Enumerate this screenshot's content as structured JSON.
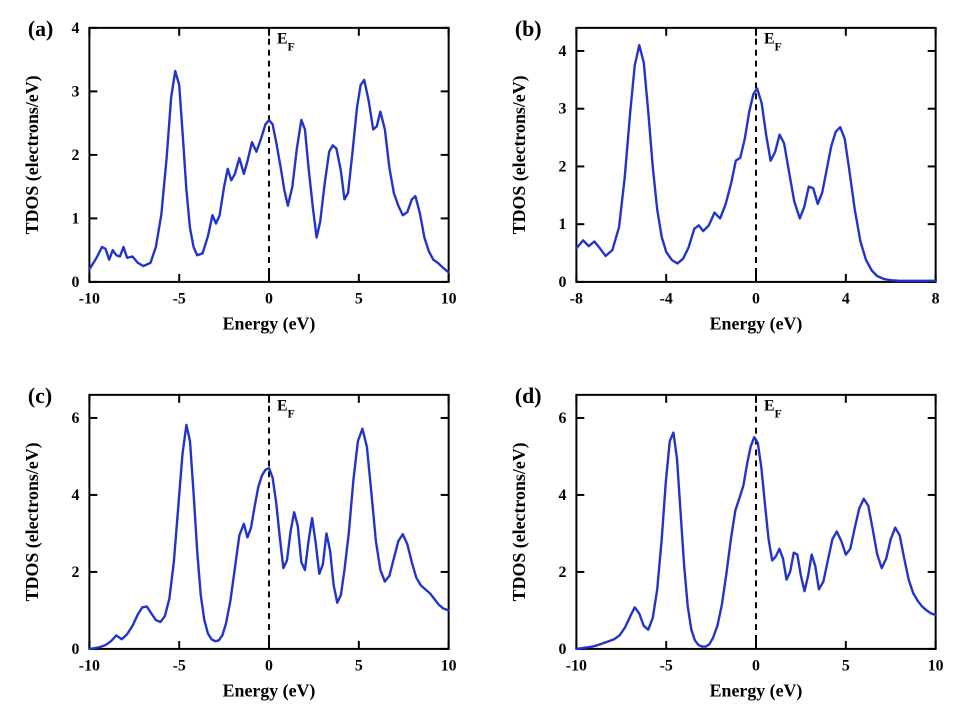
{
  "figure": {
    "background_color": "#ffffff",
    "line_color": "#2233cc",
    "line_width": 2.4,
    "axis_color": "#000000",
    "axis_width": 2,
    "tick_len_major": 8,
    "tick_len_minor": 0,
    "tick_width": 2,
    "fermi_line": {
      "color": "#000000",
      "width": 2,
      "dash": "6,5"
    },
    "font_family": "Times New Roman, Times, serif",
    "panel_label_fontsize": 22,
    "panel_label_fontweight": "bold",
    "axis_label_fontsize": 18,
    "axis_label_fontweight": "bold",
    "tick_label_fontsize": 16,
    "tick_label_fontweight": "bold",
    "ef_label": "E",
    "ef_label_sub": "F",
    "ef_label_fontsize": 16,
    "ef_label_fontweight": "bold",
    "xlabel": "Energy (eV)",
    "ylabel": "TDOS (electrons/eV)"
  },
  "panels": {
    "a": {
      "label": "(a)",
      "xlim": [
        -10,
        10
      ],
      "ylim": [
        0,
        4
      ],
      "xticks": [
        -10,
        -5,
        0,
        5,
        10
      ],
      "yticks": [
        0,
        1,
        2,
        3,
        4
      ],
      "data": [
        [
          -10.0,
          0.2
        ],
        [
          -9.6,
          0.38
        ],
        [
          -9.3,
          0.55
        ],
        [
          -9.1,
          0.52
        ],
        [
          -8.9,
          0.35
        ],
        [
          -8.7,
          0.5
        ],
        [
          -8.5,
          0.42
        ],
        [
          -8.3,
          0.4
        ],
        [
          -8.1,
          0.55
        ],
        [
          -7.9,
          0.38
        ],
        [
          -7.6,
          0.4
        ],
        [
          -7.3,
          0.3
        ],
        [
          -7.0,
          0.25
        ],
        [
          -6.6,
          0.3
        ],
        [
          -6.3,
          0.55
        ],
        [
          -6.0,
          1.05
        ],
        [
          -5.7,
          1.95
        ],
        [
          -5.45,
          2.9
        ],
        [
          -5.22,
          3.32
        ],
        [
          -5.0,
          3.1
        ],
        [
          -4.8,
          2.3
        ],
        [
          -4.6,
          1.45
        ],
        [
          -4.4,
          0.85
        ],
        [
          -4.2,
          0.55
        ],
        [
          -4.0,
          0.42
        ],
        [
          -3.7,
          0.45
        ],
        [
          -3.4,
          0.72
        ],
        [
          -3.15,
          1.05
        ],
        [
          -2.95,
          0.92
        ],
        [
          -2.75,
          1.05
        ],
        [
          -2.5,
          1.5
        ],
        [
          -2.3,
          1.78
        ],
        [
          -2.1,
          1.6
        ],
        [
          -1.9,
          1.7
        ],
        [
          -1.65,
          1.95
        ],
        [
          -1.4,
          1.7
        ],
        [
          -1.2,
          1.9
        ],
        [
          -0.95,
          2.2
        ],
        [
          -0.7,
          2.05
        ],
        [
          -0.45,
          2.25
        ],
        [
          -0.2,
          2.48
        ],
        [
          0.0,
          2.55
        ],
        [
          0.2,
          2.48
        ],
        [
          0.4,
          2.2
        ],
        [
          0.65,
          1.8
        ],
        [
          0.85,
          1.45
        ],
        [
          1.05,
          1.2
        ],
        [
          1.3,
          1.5
        ],
        [
          1.55,
          2.1
        ],
        [
          1.8,
          2.55
        ],
        [
          2.0,
          2.4
        ],
        [
          2.2,
          1.8
        ],
        [
          2.45,
          1.15
        ],
        [
          2.65,
          0.7
        ],
        [
          2.85,
          0.95
        ],
        [
          3.1,
          1.55
        ],
        [
          3.35,
          2.05
        ],
        [
          3.55,
          2.15
        ],
        [
          3.75,
          2.1
        ],
        [
          4.0,
          1.75
        ],
        [
          4.2,
          1.3
        ],
        [
          4.4,
          1.4
        ],
        [
          4.65,
          2.05
        ],
        [
          4.9,
          2.75
        ],
        [
          5.1,
          3.1
        ],
        [
          5.3,
          3.18
        ],
        [
          5.55,
          2.85
        ],
        [
          5.8,
          2.4
        ],
        [
          6.0,
          2.45
        ],
        [
          6.2,
          2.68
        ],
        [
          6.45,
          2.4
        ],
        [
          6.7,
          1.8
        ],
        [
          6.95,
          1.4
        ],
        [
          7.2,
          1.2
        ],
        [
          7.45,
          1.05
        ],
        [
          7.7,
          1.1
        ],
        [
          7.95,
          1.3
        ],
        [
          8.15,
          1.35
        ],
        [
          8.4,
          1.08
        ],
        [
          8.65,
          0.7
        ],
        [
          8.9,
          0.48
        ],
        [
          9.15,
          0.35
        ],
        [
          9.4,
          0.3
        ],
        [
          9.7,
          0.22
        ],
        [
          10.0,
          0.15
        ]
      ]
    },
    "b": {
      "label": "(b)",
      "xlim": [
        -8,
        8
      ],
      "ylim": [
        0,
        4.4
      ],
      "xticks": [
        -8,
        -4,
        0,
        4,
        8
      ],
      "yticks": [
        0,
        1,
        2,
        3,
        4
      ],
      "data": [
        [
          -8.0,
          0.58
        ],
        [
          -7.7,
          0.72
        ],
        [
          -7.45,
          0.62
        ],
        [
          -7.2,
          0.7
        ],
        [
          -6.95,
          0.58
        ],
        [
          -6.7,
          0.45
        ],
        [
          -6.4,
          0.55
        ],
        [
          -6.1,
          0.95
        ],
        [
          -5.85,
          1.8
        ],
        [
          -5.6,
          2.95
        ],
        [
          -5.4,
          3.75
        ],
        [
          -5.2,
          4.1
        ],
        [
          -5.0,
          3.8
        ],
        [
          -4.8,
          2.95
        ],
        [
          -4.6,
          2.0
        ],
        [
          -4.4,
          1.25
        ],
        [
          -4.2,
          0.78
        ],
        [
          -4.0,
          0.52
        ],
        [
          -3.75,
          0.38
        ],
        [
          -3.5,
          0.32
        ],
        [
          -3.25,
          0.4
        ],
        [
          -3.0,
          0.6
        ],
        [
          -2.75,
          0.92
        ],
        [
          -2.55,
          0.98
        ],
        [
          -2.35,
          0.88
        ],
        [
          -2.1,
          0.98
        ],
        [
          -1.85,
          1.2
        ],
        [
          -1.6,
          1.1
        ],
        [
          -1.35,
          1.35
        ],
        [
          -1.1,
          1.72
        ],
        [
          -0.9,
          2.1
        ],
        [
          -0.7,
          2.15
        ],
        [
          -0.5,
          2.48
        ],
        [
          -0.3,
          2.95
        ],
        [
          -0.12,
          3.25
        ],
        [
          0.05,
          3.35
        ],
        [
          0.25,
          3.1
        ],
        [
          0.45,
          2.55
        ],
        [
          0.65,
          2.1
        ],
        [
          0.85,
          2.25
        ],
        [
          1.05,
          2.55
        ],
        [
          1.25,
          2.4
        ],
        [
          1.45,
          1.95
        ],
        [
          1.7,
          1.4
        ],
        [
          1.95,
          1.1
        ],
        [
          2.15,
          1.3
        ],
        [
          2.35,
          1.65
        ],
        [
          2.55,
          1.62
        ],
        [
          2.75,
          1.35
        ],
        [
          2.95,
          1.55
        ],
        [
          3.15,
          1.95
        ],
        [
          3.35,
          2.35
        ],
        [
          3.55,
          2.6
        ],
        [
          3.75,
          2.68
        ],
        [
          3.95,
          2.48
        ],
        [
          4.15,
          1.95
        ],
        [
          4.4,
          1.25
        ],
        [
          4.65,
          0.7
        ],
        [
          4.9,
          0.38
        ],
        [
          5.15,
          0.2
        ],
        [
          5.4,
          0.1
        ],
        [
          5.7,
          0.05
        ],
        [
          6.0,
          0.03
        ],
        [
          6.4,
          0.02
        ],
        [
          6.8,
          0.02
        ],
        [
          7.2,
          0.02
        ],
        [
          7.6,
          0.02
        ],
        [
          8.0,
          0.02
        ]
      ]
    },
    "c": {
      "label": "(c)",
      "xlim": [
        -10,
        10
      ],
      "ylim": [
        0,
        6.6
      ],
      "xticks": [
        -10,
        -5,
        0,
        5,
        10
      ],
      "yticks": [
        0,
        2,
        4,
        6
      ],
      "data": [
        [
          -10.0,
          0.0
        ],
        [
          -9.7,
          0.02
        ],
        [
          -9.4,
          0.05
        ],
        [
          -9.1,
          0.1
        ],
        [
          -8.8,
          0.2
        ],
        [
          -8.5,
          0.35
        ],
        [
          -8.2,
          0.25
        ],
        [
          -7.9,
          0.38
        ],
        [
          -7.6,
          0.6
        ],
        [
          -7.3,
          0.9
        ],
        [
          -7.05,
          1.08
        ],
        [
          -6.8,
          1.1
        ],
        [
          -6.55,
          0.92
        ],
        [
          -6.3,
          0.75
        ],
        [
          -6.05,
          0.7
        ],
        [
          -5.8,
          0.85
        ],
        [
          -5.55,
          1.3
        ],
        [
          -5.3,
          2.25
        ],
        [
          -5.05,
          3.7
        ],
        [
          -4.82,
          5.05
        ],
        [
          -4.6,
          5.82
        ],
        [
          -4.4,
          5.4
        ],
        [
          -4.2,
          4.05
        ],
        [
          -4.0,
          2.55
        ],
        [
          -3.8,
          1.4
        ],
        [
          -3.6,
          0.75
        ],
        [
          -3.4,
          0.4
        ],
        [
          -3.2,
          0.25
        ],
        [
          -3.0,
          0.2
        ],
        [
          -2.8,
          0.22
        ],
        [
          -2.6,
          0.35
        ],
        [
          -2.4,
          0.65
        ],
        [
          -2.15,
          1.25
        ],
        [
          -1.9,
          2.1
        ],
        [
          -1.65,
          2.95
        ],
        [
          -1.4,
          3.25
        ],
        [
          -1.2,
          2.9
        ],
        [
          -1.0,
          3.15
        ],
        [
          -0.8,
          3.7
        ],
        [
          -0.6,
          4.2
        ],
        [
          -0.4,
          4.5
        ],
        [
          -0.2,
          4.65
        ],
        [
          0.0,
          4.7
        ],
        [
          0.2,
          4.45
        ],
        [
          0.4,
          3.8
        ],
        [
          0.6,
          2.9
        ],
        [
          0.8,
          2.1
        ],
        [
          1.0,
          2.3
        ],
        [
          1.2,
          3.05
        ],
        [
          1.4,
          3.55
        ],
        [
          1.6,
          3.2
        ],
        [
          1.8,
          2.25
        ],
        [
          2.0,
          2.05
        ],
        [
          2.2,
          2.8
        ],
        [
          2.4,
          3.4
        ],
        [
          2.6,
          2.75
        ],
        [
          2.8,
          1.95
        ],
        [
          3.0,
          2.2
        ],
        [
          3.2,
          3.0
        ],
        [
          3.4,
          2.55
        ],
        [
          3.6,
          1.65
        ],
        [
          3.8,
          1.2
        ],
        [
          4.0,
          1.4
        ],
        [
          4.2,
          2.05
        ],
        [
          4.45,
          3.05
        ],
        [
          4.7,
          4.4
        ],
        [
          4.95,
          5.4
        ],
        [
          5.2,
          5.72
        ],
        [
          5.45,
          5.25
        ],
        [
          5.7,
          4.05
        ],
        [
          5.95,
          2.8
        ],
        [
          6.2,
          2.05
        ],
        [
          6.45,
          1.75
        ],
        [
          6.7,
          1.9
        ],
        [
          6.95,
          2.35
        ],
        [
          7.2,
          2.8
        ],
        [
          7.45,
          2.98
        ],
        [
          7.7,
          2.72
        ],
        [
          7.95,
          2.25
        ],
        [
          8.2,
          1.85
        ],
        [
          8.45,
          1.65
        ],
        [
          8.7,
          1.55
        ],
        [
          8.95,
          1.45
        ],
        [
          9.2,
          1.3
        ],
        [
          9.45,
          1.15
        ],
        [
          9.7,
          1.05
        ],
        [
          10.0,
          1.0
        ]
      ]
    },
    "d": {
      "label": "(d)",
      "xlim": [
        -10,
        10
      ],
      "ylim": [
        0,
        6.6
      ],
      "xticks": [
        -10,
        -5,
        0,
        5,
        10
      ],
      "yticks": [
        0,
        2,
        4,
        6
      ],
      "data": [
        [
          -10.0,
          0.0
        ],
        [
          -9.7,
          0.02
        ],
        [
          -9.4,
          0.04
        ],
        [
          -9.1,
          0.06
        ],
        [
          -8.8,
          0.1
        ],
        [
          -8.5,
          0.15
        ],
        [
          -8.2,
          0.2
        ],
        [
          -7.9,
          0.25
        ],
        [
          -7.6,
          0.35
        ],
        [
          -7.3,
          0.55
        ],
        [
          -7.0,
          0.85
        ],
        [
          -6.75,
          1.08
        ],
        [
          -6.5,
          0.92
        ],
        [
          -6.25,
          0.6
        ],
        [
          -6.0,
          0.5
        ],
        [
          -5.75,
          0.8
        ],
        [
          -5.5,
          1.55
        ],
        [
          -5.25,
          2.85
        ],
        [
          -5.02,
          4.35
        ],
        [
          -4.8,
          5.4
        ],
        [
          -4.6,
          5.62
        ],
        [
          -4.4,
          4.95
        ],
        [
          -4.2,
          3.55
        ],
        [
          -4.0,
          2.15
        ],
        [
          -3.8,
          1.1
        ],
        [
          -3.6,
          0.5
        ],
        [
          -3.4,
          0.22
        ],
        [
          -3.2,
          0.1
        ],
        [
          -3.0,
          0.06
        ],
        [
          -2.8,
          0.06
        ],
        [
          -2.6,
          0.12
        ],
        [
          -2.4,
          0.28
        ],
        [
          -2.15,
          0.6
        ],
        [
          -1.9,
          1.15
        ],
        [
          -1.65,
          1.95
        ],
        [
          -1.4,
          2.85
        ],
        [
          -1.15,
          3.6
        ],
        [
          -0.9,
          3.95
        ],
        [
          -0.7,
          4.25
        ],
        [
          -0.5,
          4.8
        ],
        [
          -0.3,
          5.25
        ],
        [
          -0.1,
          5.5
        ],
        [
          0.1,
          5.35
        ],
        [
          0.3,
          4.7
        ],
        [
          0.5,
          3.75
        ],
        [
          0.7,
          2.85
        ],
        [
          0.9,
          2.3
        ],
        [
          1.1,
          2.4
        ],
        [
          1.3,
          2.6
        ],
        [
          1.5,
          2.35
        ],
        [
          1.7,
          1.8
        ],
        [
          1.9,
          2.0
        ],
        [
          2.1,
          2.5
        ],
        [
          2.3,
          2.45
        ],
        [
          2.5,
          1.9
        ],
        [
          2.7,
          1.5
        ],
        [
          2.9,
          1.9
        ],
        [
          3.1,
          2.45
        ],
        [
          3.3,
          2.15
        ],
        [
          3.5,
          1.55
        ],
        [
          3.75,
          1.75
        ],
        [
          4.0,
          2.3
        ],
        [
          4.25,
          2.85
        ],
        [
          4.5,
          3.05
        ],
        [
          4.75,
          2.8
        ],
        [
          5.0,
          2.45
        ],
        [
          5.25,
          2.6
        ],
        [
          5.5,
          3.15
        ],
        [
          5.75,
          3.65
        ],
        [
          6.0,
          3.9
        ],
        [
          6.25,
          3.72
        ],
        [
          6.5,
          3.1
        ],
        [
          6.75,
          2.45
        ],
        [
          7.0,
          2.1
        ],
        [
          7.25,
          2.35
        ],
        [
          7.5,
          2.85
        ],
        [
          7.75,
          3.15
        ],
        [
          8.0,
          2.95
        ],
        [
          8.25,
          2.35
        ],
        [
          8.5,
          1.8
        ],
        [
          8.75,
          1.45
        ],
        [
          9.0,
          1.25
        ],
        [
          9.25,
          1.1
        ],
        [
          9.5,
          1.0
        ],
        [
          9.75,
          0.92
        ],
        [
          10.0,
          0.88
        ]
      ]
    }
  }
}
